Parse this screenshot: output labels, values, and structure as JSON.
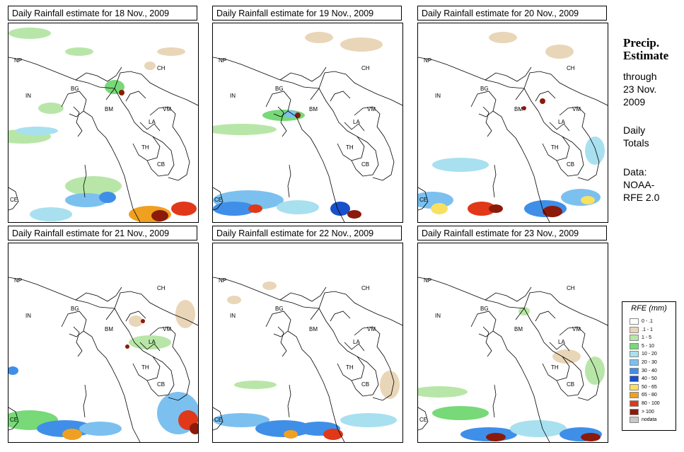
{
  "panels": [
    {
      "title": "Daily Rainfall estimate for  18 Nov., 2009"
    },
    {
      "title": "Daily Rainfall estimate for  19 Nov., 2009"
    },
    {
      "title": "Daily Rainfall estimate for  20 Nov., 2009"
    },
    {
      "title": "Daily Rainfall estimate for  21 Nov., 2009"
    },
    {
      "title": "Daily Rainfall estimate for  22 Nov., 2009"
    },
    {
      "title": "Daily Rainfall estimate for  23 Nov., 2009"
    }
  ],
  "country_labels": [
    "NP",
    "IN",
    "BG",
    "BM",
    "CH",
    "VM",
    "LA",
    "TH",
    "CB",
    "CE"
  ],
  "side": {
    "title_line1": "Precip.",
    "title_line2": "Estimate",
    "through": "through",
    "date_line1": "23 Nov.",
    "date_line2": "2009",
    "daily": "Daily",
    "totals": "Totals",
    "data_label": "Data:",
    "source_line1": "NOAA-",
    "source_line2": "RFE 2.0"
  },
  "legend": {
    "title": "RFE (mm)",
    "items": [
      {
        "label": "0 - .1",
        "color": "#ffffff"
      },
      {
        "label": ".1 - 1",
        "color": "#e9d6b8"
      },
      {
        "label": "1 - 5",
        "color": "#b8e6a8"
      },
      {
        "label": "5 - 10",
        "color": "#77d977"
      },
      {
        "label": "10 - 20",
        "color": "#a8e0f0"
      },
      {
        "label": "20 - 30",
        "color": "#7cc0f0"
      },
      {
        "label": "30 - 40",
        "color": "#3f8fe8"
      },
      {
        "label": "40 - 50",
        "color": "#1750c8"
      },
      {
        "label": "50 - 65",
        "color": "#f8e060"
      },
      {
        "label": "65 - 80",
        "color": "#f0a020"
      },
      {
        "label": "80 - 100",
        "color": "#e03818"
      },
      {
        "label": "> 100",
        "color": "#8c1a0a"
      },
      {
        "label": "nodata",
        "color": "#c8c8c8"
      }
    ]
  }
}
